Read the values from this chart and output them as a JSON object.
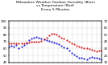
{
  "title": "Milwaukee Weather Outdoor Humidity (Blue)\nvs Temperature (Red)\nEvery 5 Minutes",
  "title_fontsize": 3.2,
  "background_color": "#ffffff",
  "blue_y": [
    63,
    64,
    63,
    65,
    60,
    63,
    65,
    68,
    72,
    75,
    76,
    77,
    76,
    74,
    73,
    72,
    71,
    70,
    69,
    68,
    66,
    64,
    62,
    60,
    57,
    54,
    51,
    49,
    47,
    46,
    45,
    44,
    46,
    48,
    47,
    46,
    45,
    44
  ],
  "red_y": [
    38,
    38,
    38,
    38,
    38,
    38,
    38,
    39,
    39,
    40,
    40,
    40,
    40,
    41,
    43,
    46,
    49,
    51,
    52,
    50,
    48,
    46,
    44,
    42,
    40,
    38,
    36,
    34,
    33,
    32,
    31,
    30,
    29,
    28,
    27,
    26,
    27,
    27
  ],
  "ylim_left": [
    40,
    100
  ],
  "ylim_right": [
    10,
    70
  ],
  "y_ticks_left": [
    40,
    50,
    60,
    70,
    80,
    90,
    100
  ],
  "y_ticks_right": [
    10,
    20,
    30,
    40,
    50,
    60,
    70
  ],
  "blue_color": "#0000cc",
  "red_color": "#cc0000",
  "grid_color": "#cccccc",
  "dot_size": 1.0,
  "tick_fontsize": 2.8,
  "n_xticks": 20
}
